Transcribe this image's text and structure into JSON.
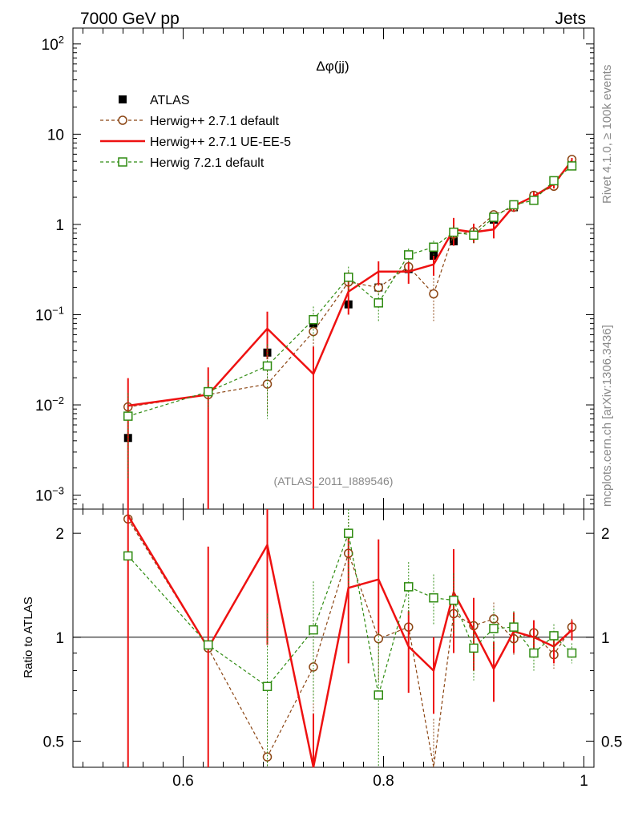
{
  "header": {
    "left": "7000 GeV pp",
    "right": "Jets",
    "side_top": "Rivet 4.1.0, ≥ 100k events",
    "side_bottom": "mcplots.cern.ch [arXiv:1306.3436]",
    "analysis_id": "(ATLAS_2011_I889546)"
  },
  "chart_data": {
    "type": "scatter",
    "title": "Δφ(jj)",
    "xlabel": "",
    "ylabel": "",
    "xlim": [
      0.49,
      1.01
    ],
    "ylim": [
      0.0007,
      150
    ],
    "yscale": "log",
    "ratio_ylabel": "Ratio to ATLAS",
    "ratio_ylim": [
      0.42,
      2.35
    ],
    "x_ticks": [
      {
        "v": 0.6,
        "label": "0.6"
      },
      {
        "v": 0.8,
        "label": "0.8"
      },
      {
        "v": 1.0,
        "label": "1"
      }
    ],
    "y_ticks": [
      {
        "v": 0.001,
        "base": "10",
        "exp": "−3"
      },
      {
        "v": 0.01,
        "base": "10",
        "exp": "−2"
      },
      {
        "v": 0.1,
        "base": "10",
        "exp": "−1"
      },
      {
        "v": 1,
        "base": "1",
        "exp": ""
      },
      {
        "v": 10,
        "base": "10",
        "exp": ""
      },
      {
        "v": 100,
        "base": "10",
        "exp": "2"
      }
    ],
    "ratio_ticks": [
      {
        "v": 0.5,
        "label": "0.5"
      },
      {
        "v": 1,
        "label": "1"
      },
      {
        "v": 2,
        "label": "2"
      }
    ],
    "x": [
      0.545,
      0.625,
      0.684,
      0.73,
      0.765,
      0.795,
      0.825,
      0.85,
      0.87,
      0.89,
      0.91,
      0.93,
      0.95,
      0.97,
      0.988
    ],
    "series": [
      {
        "name": "ATLAS",
        "style": "data",
        "color": "#000000",
        "values": [
          0.0043,
          0.014,
          0.038,
          0.08,
          0.13,
          0.2,
          0.32,
          0.45,
          0.65,
          0.78,
          1.13,
          1.55,
          2.05,
          2.98,
          4.95
        ]
      },
      {
        "name": "Herwig++ 2.7.1 default",
        "style": "circle-dashed",
        "color": "#8b4513",
        "values": [
          0.0095,
          0.013,
          0.017,
          0.065,
          0.23,
          0.2,
          0.34,
          0.17,
          0.78,
          0.83,
          1.28,
          1.55,
          2.1,
          2.65,
          5.25
        ],
        "yerr": [
          0.01,
          0.005,
          0.009,
          0.03,
          0.07,
          0.04,
          0.06,
          0.085,
          0.13,
          0.12,
          0.15,
          0.15,
          0.18,
          0.25,
          0.3
        ],
        "ratio": [
          2.2,
          0.93,
          0.45,
          0.82,
          1.75,
          0.99,
          1.07,
          0.4,
          1.17,
          1.08,
          1.13,
          0.99,
          1.03,
          0.89,
          1.07
        ],
        "ratio_err": [
          0,
          0,
          0.22,
          0.35,
          0.5,
          0.25,
          0.18,
          0.18,
          0.2,
          0.16,
          0.13,
          0.1,
          0.09,
          0.08,
          0.06
        ]
      },
      {
        "name": "Herwig++ 2.7.1 UE-EE-5",
        "style": "line",
        "color": "#ee1111",
        "values": [
          0.0098,
          0.013,
          0.07,
          0.022,
          0.18,
          0.3,
          0.3,
          0.36,
          0.88,
          0.82,
          0.88,
          1.6,
          2.05,
          2.8,
          5.1
        ],
        "yerr": [
          0.01,
          0.013,
          0.038,
          0.022,
          0.08,
          0.09,
          0.08,
          0.09,
          0.3,
          0.2,
          0.18,
          0.22,
          0.25,
          0.3,
          0.35
        ],
        "ratio": [
          2.25,
          0.93,
          1.85,
          0.3,
          1.39,
          1.47,
          0.94,
          0.8,
          1.35,
          1.05,
          0.81,
          1.04,
          1.0,
          0.94,
          1.05
        ],
        "ratio_err": [
          2.0,
          0.9,
          0.9,
          0.3,
          0.55,
          0.45,
          0.25,
          0.2,
          0.45,
          0.25,
          0.16,
          0.14,
          0.12,
          0.1,
          0.07
        ]
      },
      {
        "name": "Herwig 7.2.1 default",
        "style": "square-dashed",
        "color": "#2e8b10",
        "values": [
          0.0075,
          0.014,
          0.027,
          0.088,
          0.26,
          0.135,
          0.46,
          0.56,
          0.82,
          0.76,
          1.2,
          1.65,
          1.85,
          3.05,
          4.45
        ],
        "yerr": [
          0.006,
          0.005,
          0.02,
          0.035,
          0.08,
          0.05,
          0.08,
          0.1,
          0.15,
          0.14,
          0.15,
          0.15,
          0.16,
          0.25,
          0.3
        ],
        "ratio": [
          1.72,
          0.95,
          0.72,
          1.05,
          2.0,
          0.68,
          1.4,
          1.3,
          1.28,
          0.93,
          1.06,
          1.07,
          0.9,
          1.01,
          0.9
        ],
        "ratio_err": [
          0,
          0,
          0.45,
          0.4,
          0.6,
          0.35,
          0.25,
          0.22,
          0.25,
          0.18,
          0.15,
          0.12,
          0.1,
          0.08,
          0.06
        ]
      }
    ],
    "legend_position": "top-left"
  }
}
